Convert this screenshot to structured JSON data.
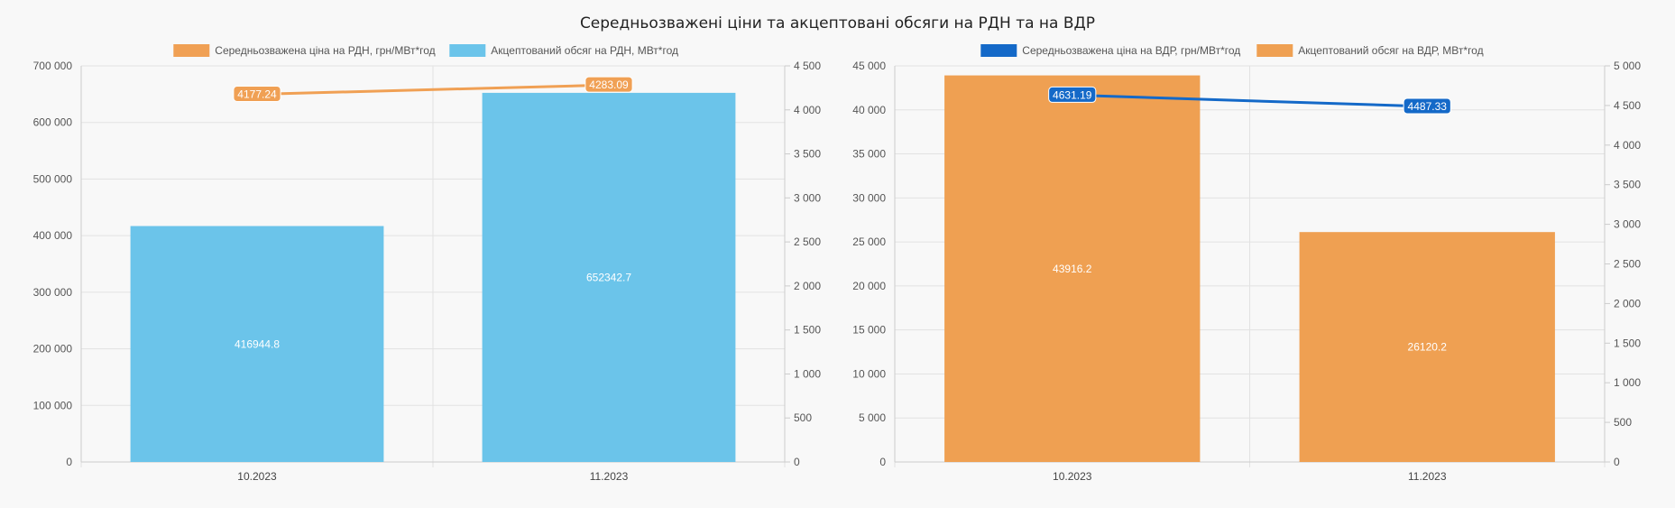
{
  "title": "Середньозважені ціни та акцептовані обсяги на РДН та на ВДР",
  "chart_data": [
    {
      "type": "bar",
      "categories": [
        "10.2023",
        "11.2023"
      ],
      "series": [
        {
          "name": "Середньозважена ціна на РДН, грн/МВт*год",
          "kind": "line",
          "axis": "right",
          "color": "#f0a054",
          "values": [
            4177.24,
            4283.09
          ]
        },
        {
          "name": "Акцептований обсяг на РДН, МВт*год",
          "kind": "bar",
          "axis": "left",
          "color": "#6bc4ea",
          "values": [
            416944.8,
            652342.7
          ]
        }
      ],
      "labels": {
        "line": [
          "4177.24",
          "4283.09"
        ],
        "bar": [
          "416944.8",
          "652342.7"
        ]
      },
      "ylim_left": [
        0,
        700000
      ],
      "ylim_right": [
        0,
        4500
      ],
      "yticks_left": [
        "0",
        "100 000",
        "200 000",
        "300 000",
        "400 000",
        "500 000",
        "600 000",
        "700 000"
      ],
      "yticks_right": [
        "0",
        "500",
        "1 000",
        "1 500",
        "2 000",
        "2 500",
        "3 000",
        "3 500",
        "4 000",
        "4 500"
      ],
      "grid": true,
      "legend": "top"
    },
    {
      "type": "bar",
      "categories": [
        "10.2023",
        "11.2023"
      ],
      "series": [
        {
          "name": "Середньозважена ціна на ВДР, грн/МВт*год",
          "kind": "line",
          "axis": "right",
          "color": "#1469c8",
          "values": [
            4631.19,
            4487.33
          ]
        },
        {
          "name": "Акцептований обсяг на ВДР, МВт*год",
          "kind": "bar",
          "axis": "left",
          "color": "#efa052",
          "values": [
            43916.2,
            26120.2
          ]
        }
      ],
      "labels": {
        "line": [
          "4631.19",
          "4487.33"
        ],
        "bar": [
          "43916.2",
          "26120.2"
        ]
      },
      "ylim_left": [
        0,
        45000
      ],
      "ylim_right": [
        0,
        5000
      ],
      "yticks_left": [
        "0",
        "5 000",
        "10 000",
        "15 000",
        "20 000",
        "25 000",
        "30 000",
        "35 000",
        "40 000",
        "45 000"
      ],
      "yticks_right": [
        "0",
        "500",
        "1 000",
        "1 500",
        "2 000",
        "2 500",
        "3 000",
        "3 500",
        "4 000",
        "4 500",
        "5 000"
      ],
      "grid": true,
      "legend": "top"
    }
  ]
}
